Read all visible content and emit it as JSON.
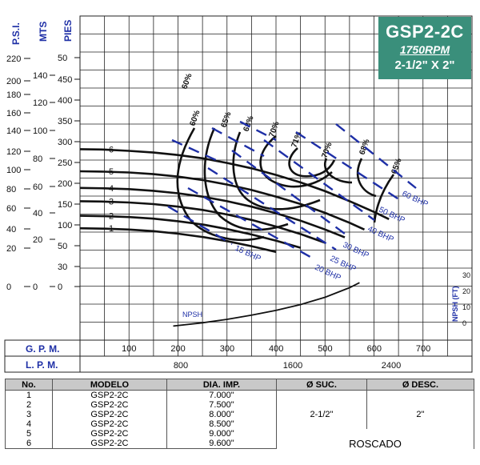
{
  "header": {
    "model": "GSP2-2C",
    "rpm": "1750RPM",
    "size": "2-1/2\" X 2\""
  },
  "axes": {
    "psi_label": "P.S.I.",
    "mts_label": "MTS",
    "pies_label": "PIES",
    "gpm_label": "G. P. M.",
    "lpm_label": "L. P. M.",
    "npsh_label": "NPSH (FT)",
    "npsh_curve_label": "NPSH",
    "psi_ticks": [
      "220",
      "200",
      "180",
      "160",
      "140",
      "120",
      "100",
      "80",
      "60",
      "40",
      "20",
      "0"
    ],
    "mts_ticks": [
      "140",
      "120",
      "100",
      "80",
      "60",
      "40",
      "20",
      "0"
    ],
    "pies_ticks": [
      "50",
      "450",
      "400",
      "350",
      "300",
      "250",
      "200",
      "150",
      "100",
      "50",
      "30",
      "0"
    ],
    "gpm_ticks": [
      "100",
      "200",
      "300",
      "400",
      "500",
      "600",
      "700"
    ],
    "lpm_ticks": [
      "800",
      "1600",
      "2400"
    ],
    "npsh_ticks": [
      "30",
      "20",
      "10",
      "0"
    ]
  },
  "chart_data": {
    "type": "line",
    "x_unit": "GPM",
    "y_unit": "PIES",
    "xlim": [
      0,
      800
    ],
    "ylim": [
      0,
      480
    ],
    "series": [
      {
        "name": "1",
        "x": [
          0,
          50,
          100,
          150,
          200,
          250,
          300,
          350,
          400
        ],
        "y": [
          140,
          139,
          137,
          133,
          127,
          119,
          109,
          97,
          83
        ]
      },
      {
        "name": "2",
        "x": [
          0,
          50,
          100,
          150,
          200,
          250,
          300,
          350,
          400,
          450
        ],
        "y": [
          170,
          169,
          167,
          163,
          157,
          149,
          138,
          125,
          110,
          93
        ]
      },
      {
        "name": "3",
        "x": [
          0,
          50,
          100,
          150,
          200,
          250,
          300,
          350,
          400,
          450,
          500
        ],
        "y": [
          205,
          204,
          202,
          198,
          192,
          184,
          173,
          160,
          144,
          126,
          105
        ]
      },
      {
        "name": "4",
        "x": [
          0,
          50,
          100,
          150,
          200,
          250,
          300,
          350,
          400,
          450,
          500,
          540
        ],
        "y": [
          237,
          236,
          234,
          230,
          224,
          216,
          205,
          192,
          176,
          158,
          137,
          118
        ]
      },
      {
        "name": "5",
        "x": [
          0,
          50,
          100,
          150,
          200,
          250,
          300,
          350,
          400,
          450,
          500,
          550,
          580
        ],
        "y": [
          277,
          276,
          274,
          270,
          264,
          256,
          245,
          232,
          216,
          198,
          177,
          153,
          137
        ]
      },
      {
        "name": "6",
        "x": [
          0,
          50,
          100,
          150,
          200,
          250,
          300,
          350,
          400,
          450,
          500,
          550,
          600,
          630
        ],
        "y": [
          330,
          329,
          326,
          322,
          316,
          308,
          297,
          284,
          268,
          250,
          229,
          205,
          179,
          162
        ]
      }
    ],
    "efficiency_labels": [
      "60%",
      "60%",
      "65%",
      "68%",
      "70%",
      "71%",
      "70%",
      "68%",
      "65%"
    ],
    "bhp_labels": [
      "15 BHP",
      "20 BHP",
      "25 BHP",
      "30 BHP",
      "40 BHP",
      "50 BHP",
      "60 BHP"
    ],
    "npsh_curve": {
      "x": [
        190,
        250,
        300,
        350,
        400,
        450,
        500,
        550,
        570
      ],
      "y": [
        0.3,
        2.2,
        4.2,
        6.6,
        9.4,
        12.8,
        17.0,
        22.6,
        25.5
      ]
    },
    "npsh_ylim": [
      0,
      30
    ]
  },
  "table": {
    "headers": [
      "No.",
      "MODELO",
      "DIA. IMP.",
      "Ø SUC.",
      "Ø DESC."
    ],
    "rows": [
      {
        "no": "1",
        "model": "GSP2-2C",
        "dia": "7.000\""
      },
      {
        "no": "2",
        "model": "GSP2-2C",
        "dia": "7.500\""
      },
      {
        "no": "3",
        "model": "GSP2-2C",
        "dia": "8.000\""
      },
      {
        "no": "4",
        "model": "GSP2-2C",
        "dia": "8.500\""
      },
      {
        "no": "5",
        "model": "GSP2-2C",
        "dia": "9.000\""
      },
      {
        "no": "6",
        "model": "GSP2-2C",
        "dia": "9.600\""
      }
    ],
    "suction": "2-1/2\"",
    "discharge": "2\"",
    "connection": "ROSCADO"
  },
  "colors": {
    "curve": "#111111",
    "bhp": "#1e2fa6",
    "header_bg": "#3a8f7b",
    "grid": "#222222"
  }
}
